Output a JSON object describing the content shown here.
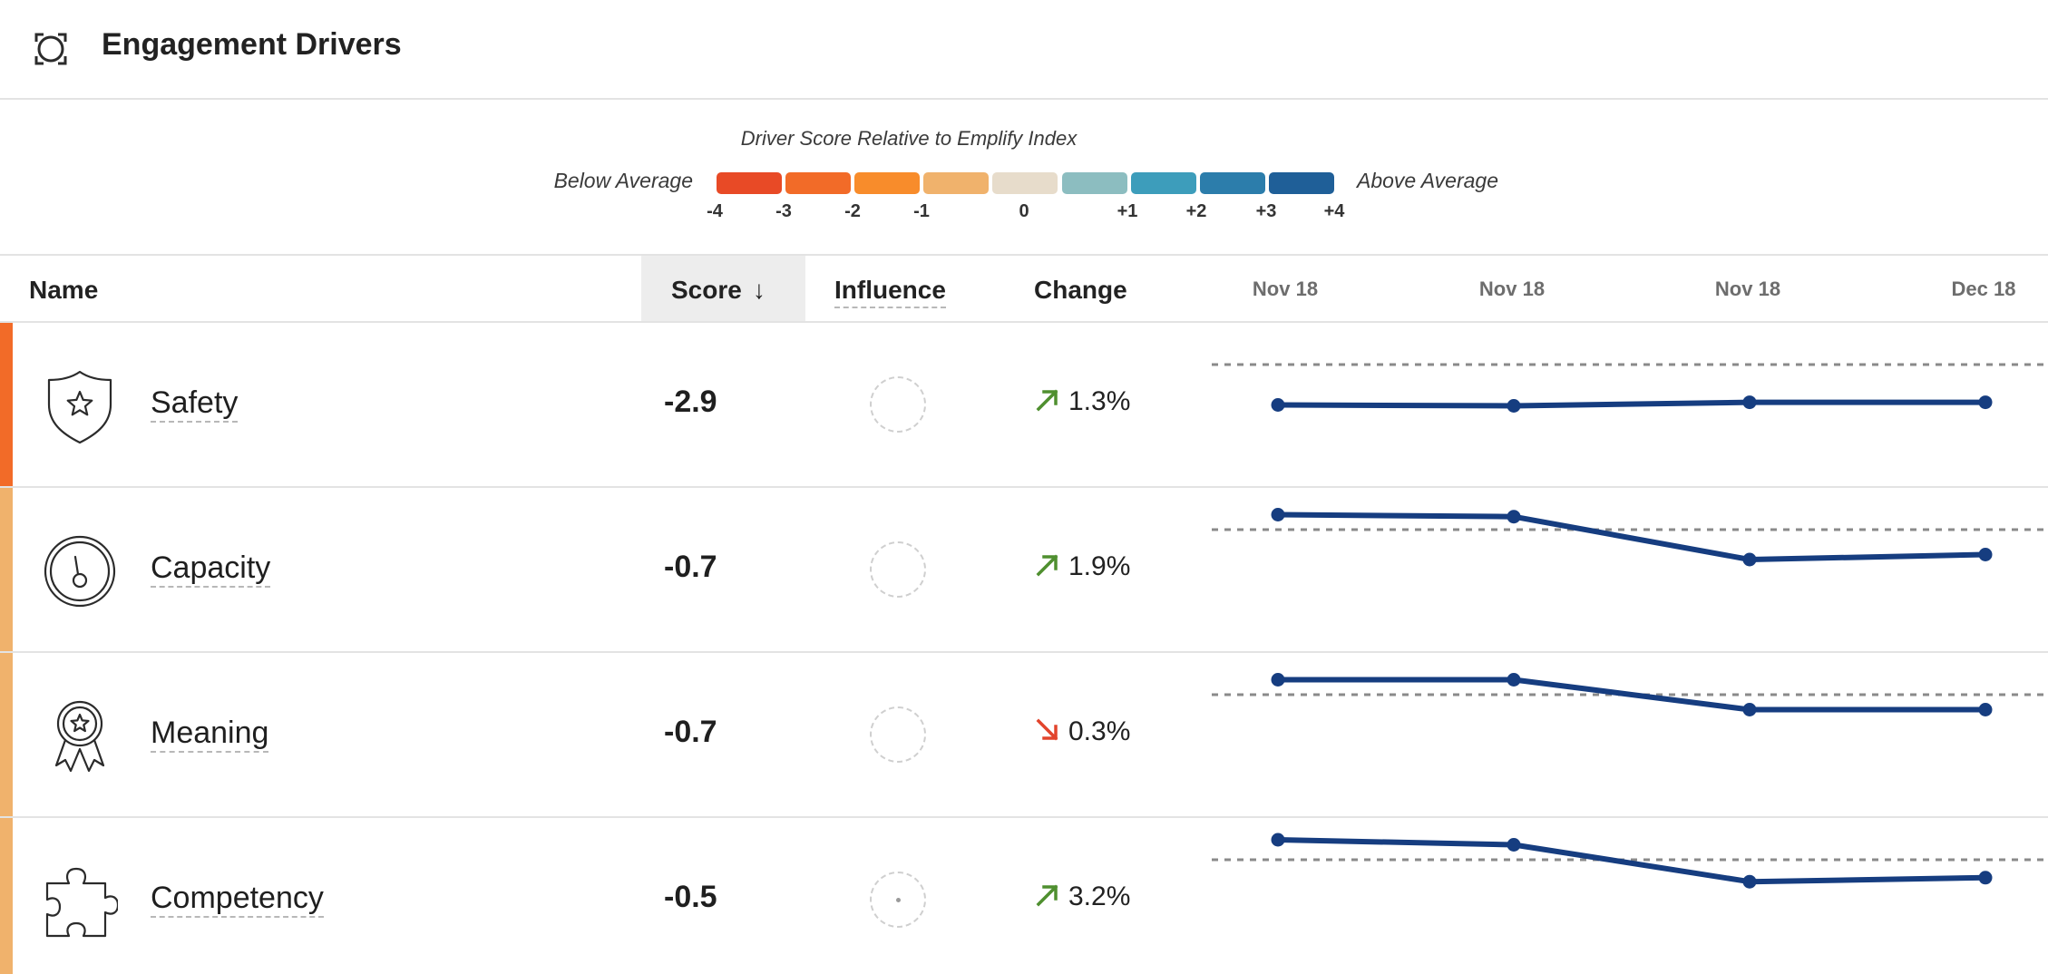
{
  "header": {
    "title": "Engagement Drivers",
    "icon": "target-frame-icon"
  },
  "legend": {
    "title": "Driver Score Relative to Emplify Index",
    "low_label": "Below Average",
    "high_label": "Above Average",
    "colors": [
      "#e84a26",
      "#f26b28",
      "#f88c2b",
      "#f0b26c",
      "#e7dccb",
      "#8cbdc0",
      "#3d9dbb",
      "#2c7dab",
      "#1f5f98"
    ],
    "ticks": [
      "-4",
      "-3",
      "-2",
      "-1",
      "0",
      "+1",
      "+2",
      "+3",
      "+4"
    ]
  },
  "table": {
    "columns": {
      "name": "Name",
      "score": "Score",
      "influence": "Influence",
      "change": "Change"
    },
    "sort_icon": "arrow-down-icon",
    "dates": [
      "Nov 18",
      "Nov 18",
      "Nov 18",
      "Dec 18"
    ],
    "rows": [
      {
        "name": "Safety",
        "icon": "shield-star-icon",
        "score": "-2.9",
        "influence_dot": false,
        "change": "1.3%",
        "direction": "up",
        "bar_color": "#f26b28",
        "trend": [
          -3.05,
          -3.06,
          -3.02,
          -3.02
        ],
        "benchmark": -2.6
      },
      {
        "name": "Capacity",
        "icon": "gauge-icon",
        "score": "-0.7",
        "influence_dot": false,
        "change": "1.9%",
        "direction": "up",
        "bar_color": "#f0b26c",
        "trend": [
          -0.5,
          -0.52,
          -0.95,
          -0.9
        ],
        "benchmark": -0.65
      },
      {
        "name": "Meaning",
        "icon": "award-ribbon-icon",
        "score": "-0.7",
        "influence_dot": false,
        "change": "0.3%",
        "direction": "down",
        "bar_color": "#f0b26c",
        "trend": [
          -0.35,
          -0.35,
          -0.65,
          -0.65
        ],
        "benchmark": -0.5
      },
      {
        "name": "Competency",
        "icon": "puzzle-piece-icon",
        "score": "-0.5",
        "influence_dot": true,
        "change": "3.2%",
        "direction": "up",
        "bar_color": "#f0b26c",
        "trend": [
          -0.3,
          -0.35,
          -0.72,
          -0.68
        ],
        "benchmark": -0.5
      }
    ]
  },
  "theme": {
    "line_color": "#163d80",
    "up_color": "#4f8f2f",
    "down_color": "#e2442c"
  }
}
